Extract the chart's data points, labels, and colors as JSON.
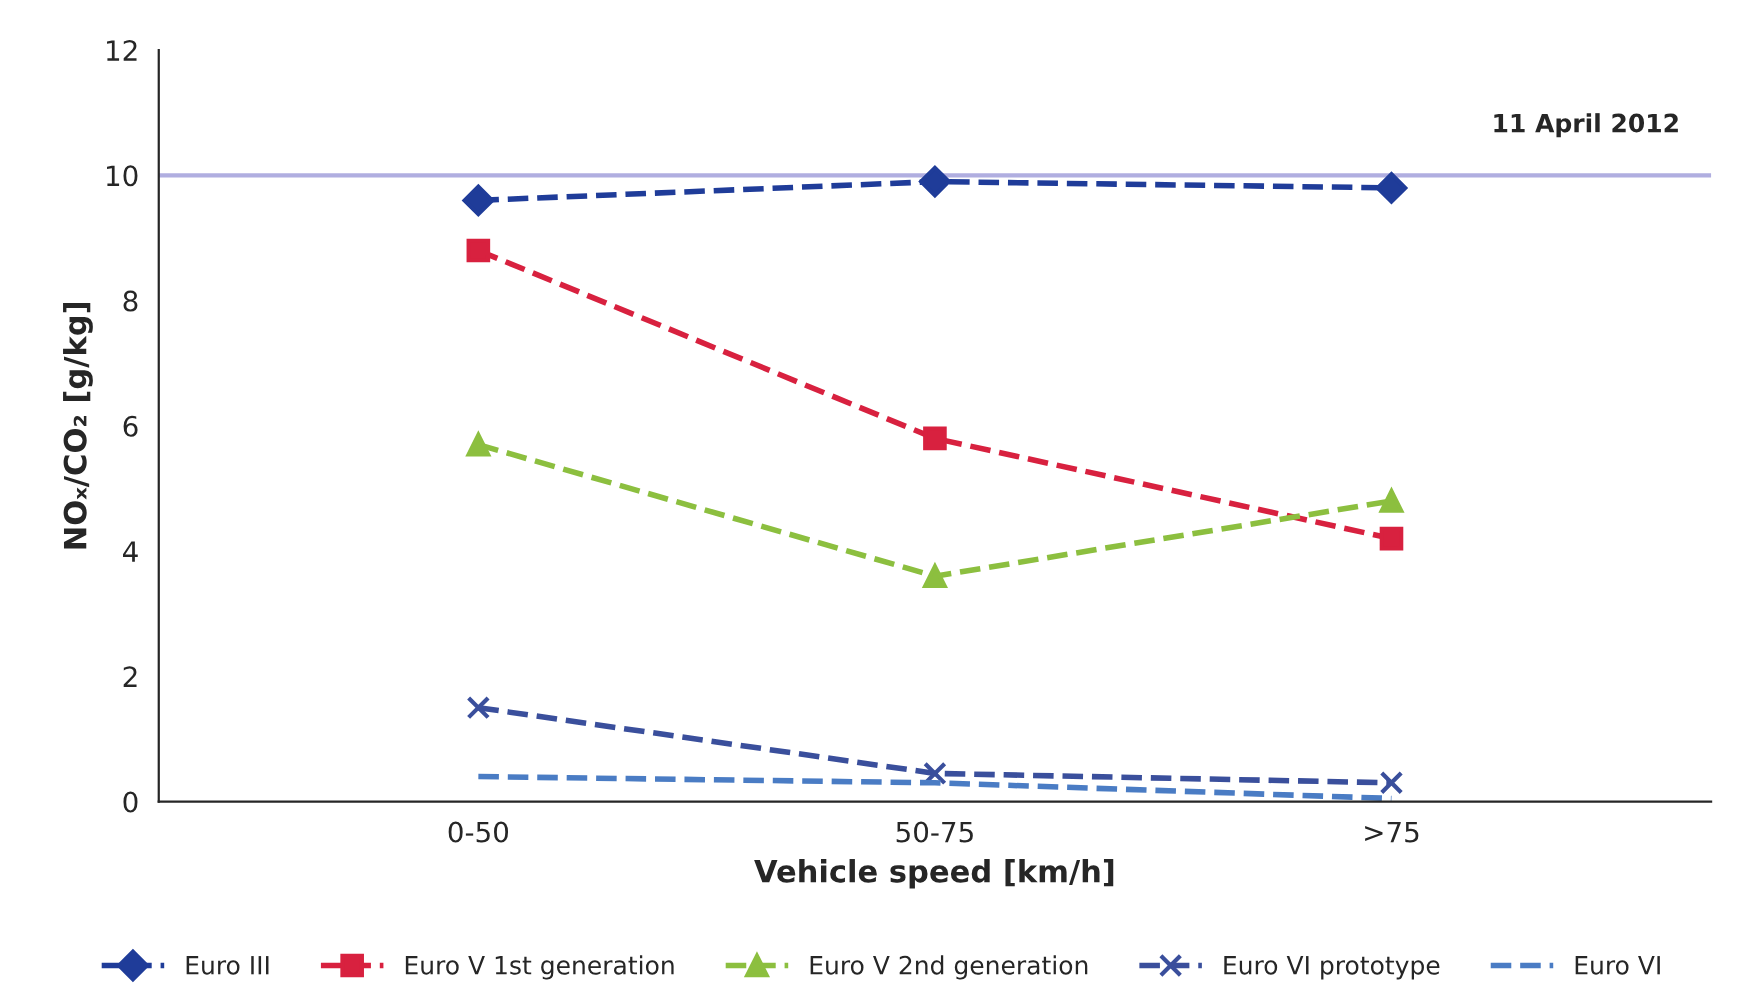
{
  "chart_data": {
    "type": "line",
    "xlabel": "Vehicle speed [km/h]",
    "ylabel": "NOₓ/CO₂ [g/kg]",
    "categories": [
      "0-50",
      "50-75",
      ">75"
    ],
    "series": [
      {
        "name": "Euro III",
        "color": "#1f3c99",
        "values": [
          9.6,
          9.9,
          9.8
        ],
        "marker": "diamond"
      },
      {
        "name": "Euro V 1st generation",
        "color": "#d8213f",
        "values": [
          8.8,
          5.8,
          4.2
        ],
        "marker": "square"
      },
      {
        "name": "Euro V 2nd generation",
        "color": "#8cbf3f",
        "values": [
          5.7,
          3.6,
          4.8
        ],
        "marker": "triangle"
      },
      {
        "name": "Euro VI prototype",
        "color": "#3a4f9c",
        "values": [
          1.5,
          0.45,
          0.3
        ],
        "marker": "cross"
      },
      {
        "name": "Euro VI",
        "color": "#4a7cc4",
        "values": [
          0.4,
          0.3,
          0.05
        ],
        "marker": "none"
      }
    ],
    "ylim": [
      0,
      12
    ],
    "yticks": [
      0,
      2,
      4,
      6,
      8,
      10,
      12
    ],
    "grid": false,
    "legend": "bottom",
    "line_style": "dashed",
    "ref_lines": [
      {
        "axis": "y",
        "value": 10,
        "color": "#b0aee0",
        "line_style": "solid"
      }
    ],
    "annotations": [
      "11 April 2012"
    ]
  }
}
